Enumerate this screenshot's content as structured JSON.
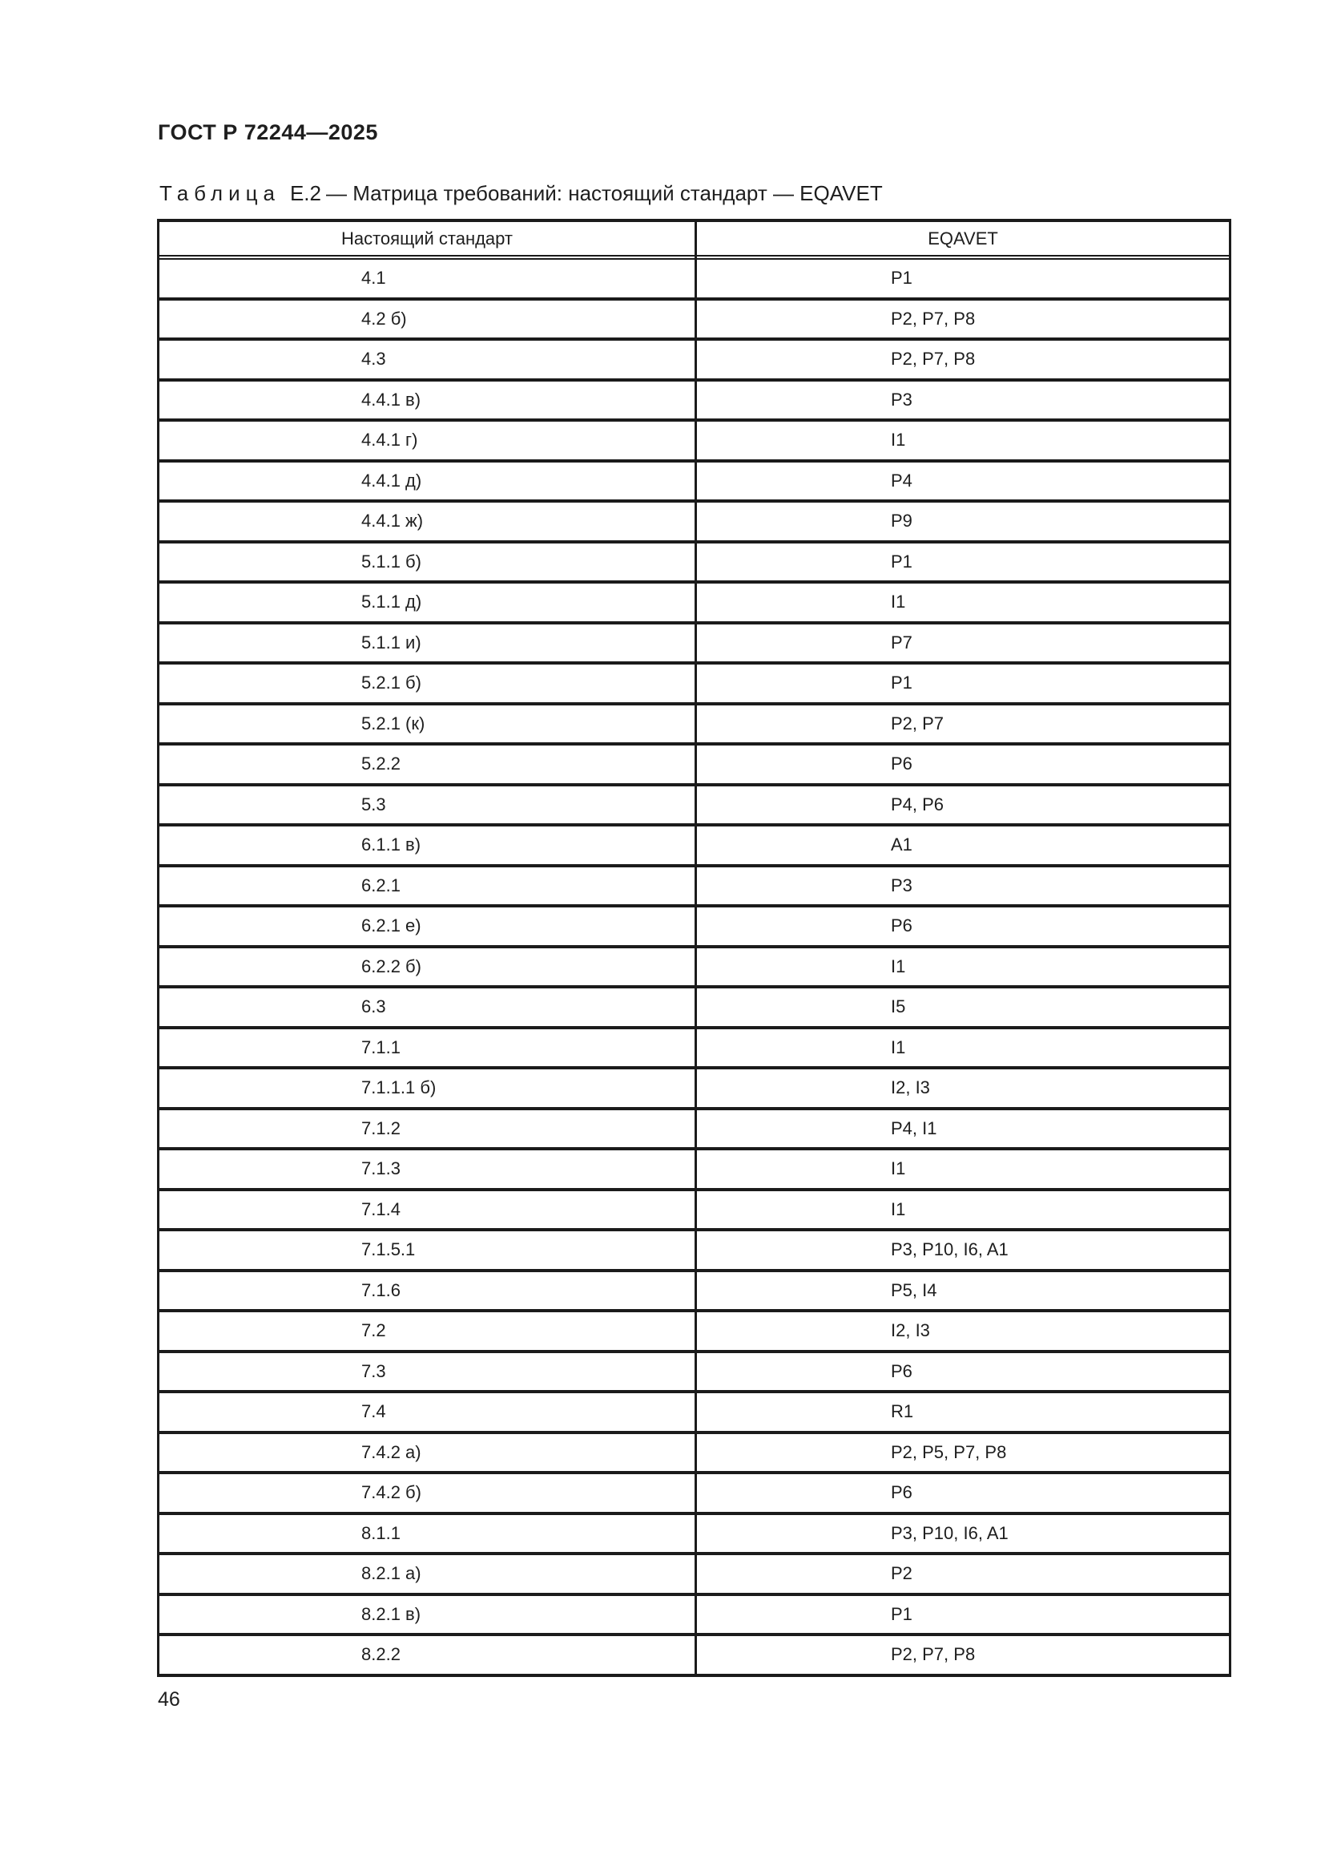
{
  "page": {
    "doc_code": "ГОСТ Р 72244—2025",
    "page_number": "46"
  },
  "caption": {
    "label": "Таблица",
    "number": "Е.2",
    "title": "— Матрица требований: настоящий стандарт — EQAVET"
  },
  "table": {
    "columns": [
      "Настоящий стандарт",
      "EQAVET"
    ],
    "rows": [
      {
        "standard": "4.1",
        "eqavet": "P1"
      },
      {
        "standard": "4.2 б)",
        "eqavet": "P2, P7, P8"
      },
      {
        "standard": "4.3",
        "eqavet": "P2, P7, P8"
      },
      {
        "standard": "4.4.1 в)",
        "eqavet": "P3"
      },
      {
        "standard": "4.4.1 г)",
        "eqavet": "I1"
      },
      {
        "standard": "4.4.1 д)",
        "eqavet": "P4"
      },
      {
        "standard": "4.4.1 ж)",
        "eqavet": "P9"
      },
      {
        "standard": "5.1.1 б)",
        "eqavet": "P1"
      },
      {
        "standard": "5.1.1 д)",
        "eqavet": "I1"
      },
      {
        "standard": "5.1.1 и)",
        "eqavet": "P7"
      },
      {
        "standard": "5.2.1 б)",
        "eqavet": "P1"
      },
      {
        "standard": "5.2.1 (к)",
        "eqavet": "P2, P7"
      },
      {
        "standard": "5.2.2",
        "eqavet": "P6"
      },
      {
        "standard": "5.3",
        "eqavet": "P4, P6"
      },
      {
        "standard": "6.1.1 в)",
        "eqavet": "A1"
      },
      {
        "standard": "6.2.1",
        "eqavet": "P3"
      },
      {
        "standard": "6.2.1 е)",
        "eqavet": "P6"
      },
      {
        "standard": "6.2.2 б)",
        "eqavet": "I1"
      },
      {
        "standard": "6.3",
        "eqavet": "I5"
      },
      {
        "standard": "7.1.1",
        "eqavet": "I1"
      },
      {
        "standard": "7.1.1.1 б)",
        "eqavet": "I2, I3"
      },
      {
        "standard": "7.1.2",
        "eqavet": "P4, I1"
      },
      {
        "standard": "7.1.3",
        "eqavet": "I1"
      },
      {
        "standard": "7.1.4",
        "eqavet": "I1"
      },
      {
        "standard": "7.1.5.1",
        "eqavet": "P3, P10, I6, A1"
      },
      {
        "standard": "7.1.6",
        "eqavet": "P5, I4"
      },
      {
        "standard": "7.2",
        "eqavet": "I2, I3"
      },
      {
        "standard": "7.3",
        "eqavet": "P6"
      },
      {
        "standard": "7.4",
        "eqavet": "R1"
      },
      {
        "standard": "7.4.2 а)",
        "eqavet": "P2, P5, P7, P8"
      },
      {
        "standard": "7.4.2 б)",
        "eqavet": "P6"
      },
      {
        "standard": "8.1.1",
        "eqavet": "P3, P10, I6, A1"
      },
      {
        "standard": "8.2.1 а)",
        "eqavet": "P2"
      },
      {
        "standard": "8.2.1 в)",
        "eqavet": "P1"
      },
      {
        "standard": "8.2.2",
        "eqavet": "P2, P7, P8"
      }
    ]
  }
}
